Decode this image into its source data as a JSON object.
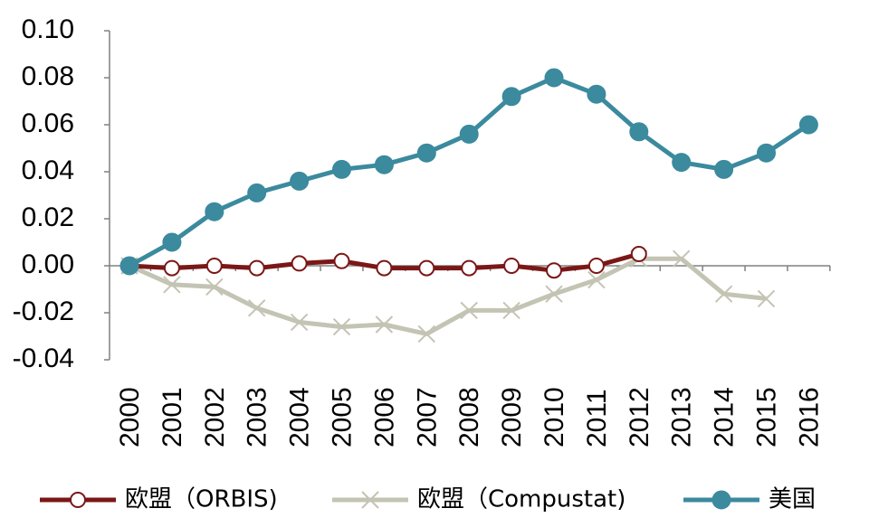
{
  "chart_data": {
    "type": "line",
    "x": [
      "2000",
      "2001",
      "2002",
      "2003",
      "2004",
      "2005",
      "2006",
      "2007",
      "2008",
      "2009",
      "2010",
      "2011",
      "2012",
      "2013",
      "2014",
      "2015",
      "2016"
    ],
    "ylim": [
      -0.04,
      0.1
    ],
    "yticks": [
      "0.10",
      "0.08",
      "0.06",
      "0.04",
      "0.02",
      "0.00",
      "-0.02",
      "-0.04"
    ],
    "grid": false,
    "legend_position": "bottom",
    "series": [
      {
        "name": "欧盟（ORBIS)",
        "color": "#7b1717",
        "marker": "open-circle",
        "values": [
          0.0,
          -0.001,
          0.0,
          -0.001,
          0.001,
          0.002,
          -0.001,
          -0.001,
          -0.001,
          0.0,
          -0.002,
          0.0,
          0.005,
          null,
          null,
          null,
          null
        ]
      },
      {
        "name": "欧盟（Compustat)",
        "color": "#c4c4b4",
        "marker": "x",
        "values": [
          0.0,
          -0.008,
          -0.009,
          -0.018,
          -0.024,
          -0.026,
          -0.025,
          -0.029,
          -0.019,
          -0.019,
          -0.012,
          -0.006,
          0.003,
          0.003,
          -0.012,
          -0.014,
          null
        ]
      },
      {
        "name": "美国",
        "color": "#3b8a9e",
        "marker": "filled-circle",
        "values": [
          0.0,
          0.01,
          0.023,
          0.031,
          0.036,
          0.041,
          0.043,
          0.048,
          0.056,
          0.072,
          0.08,
          0.073,
          0.057,
          0.044,
          0.041,
          0.048,
          0.06
        ]
      }
    ]
  }
}
